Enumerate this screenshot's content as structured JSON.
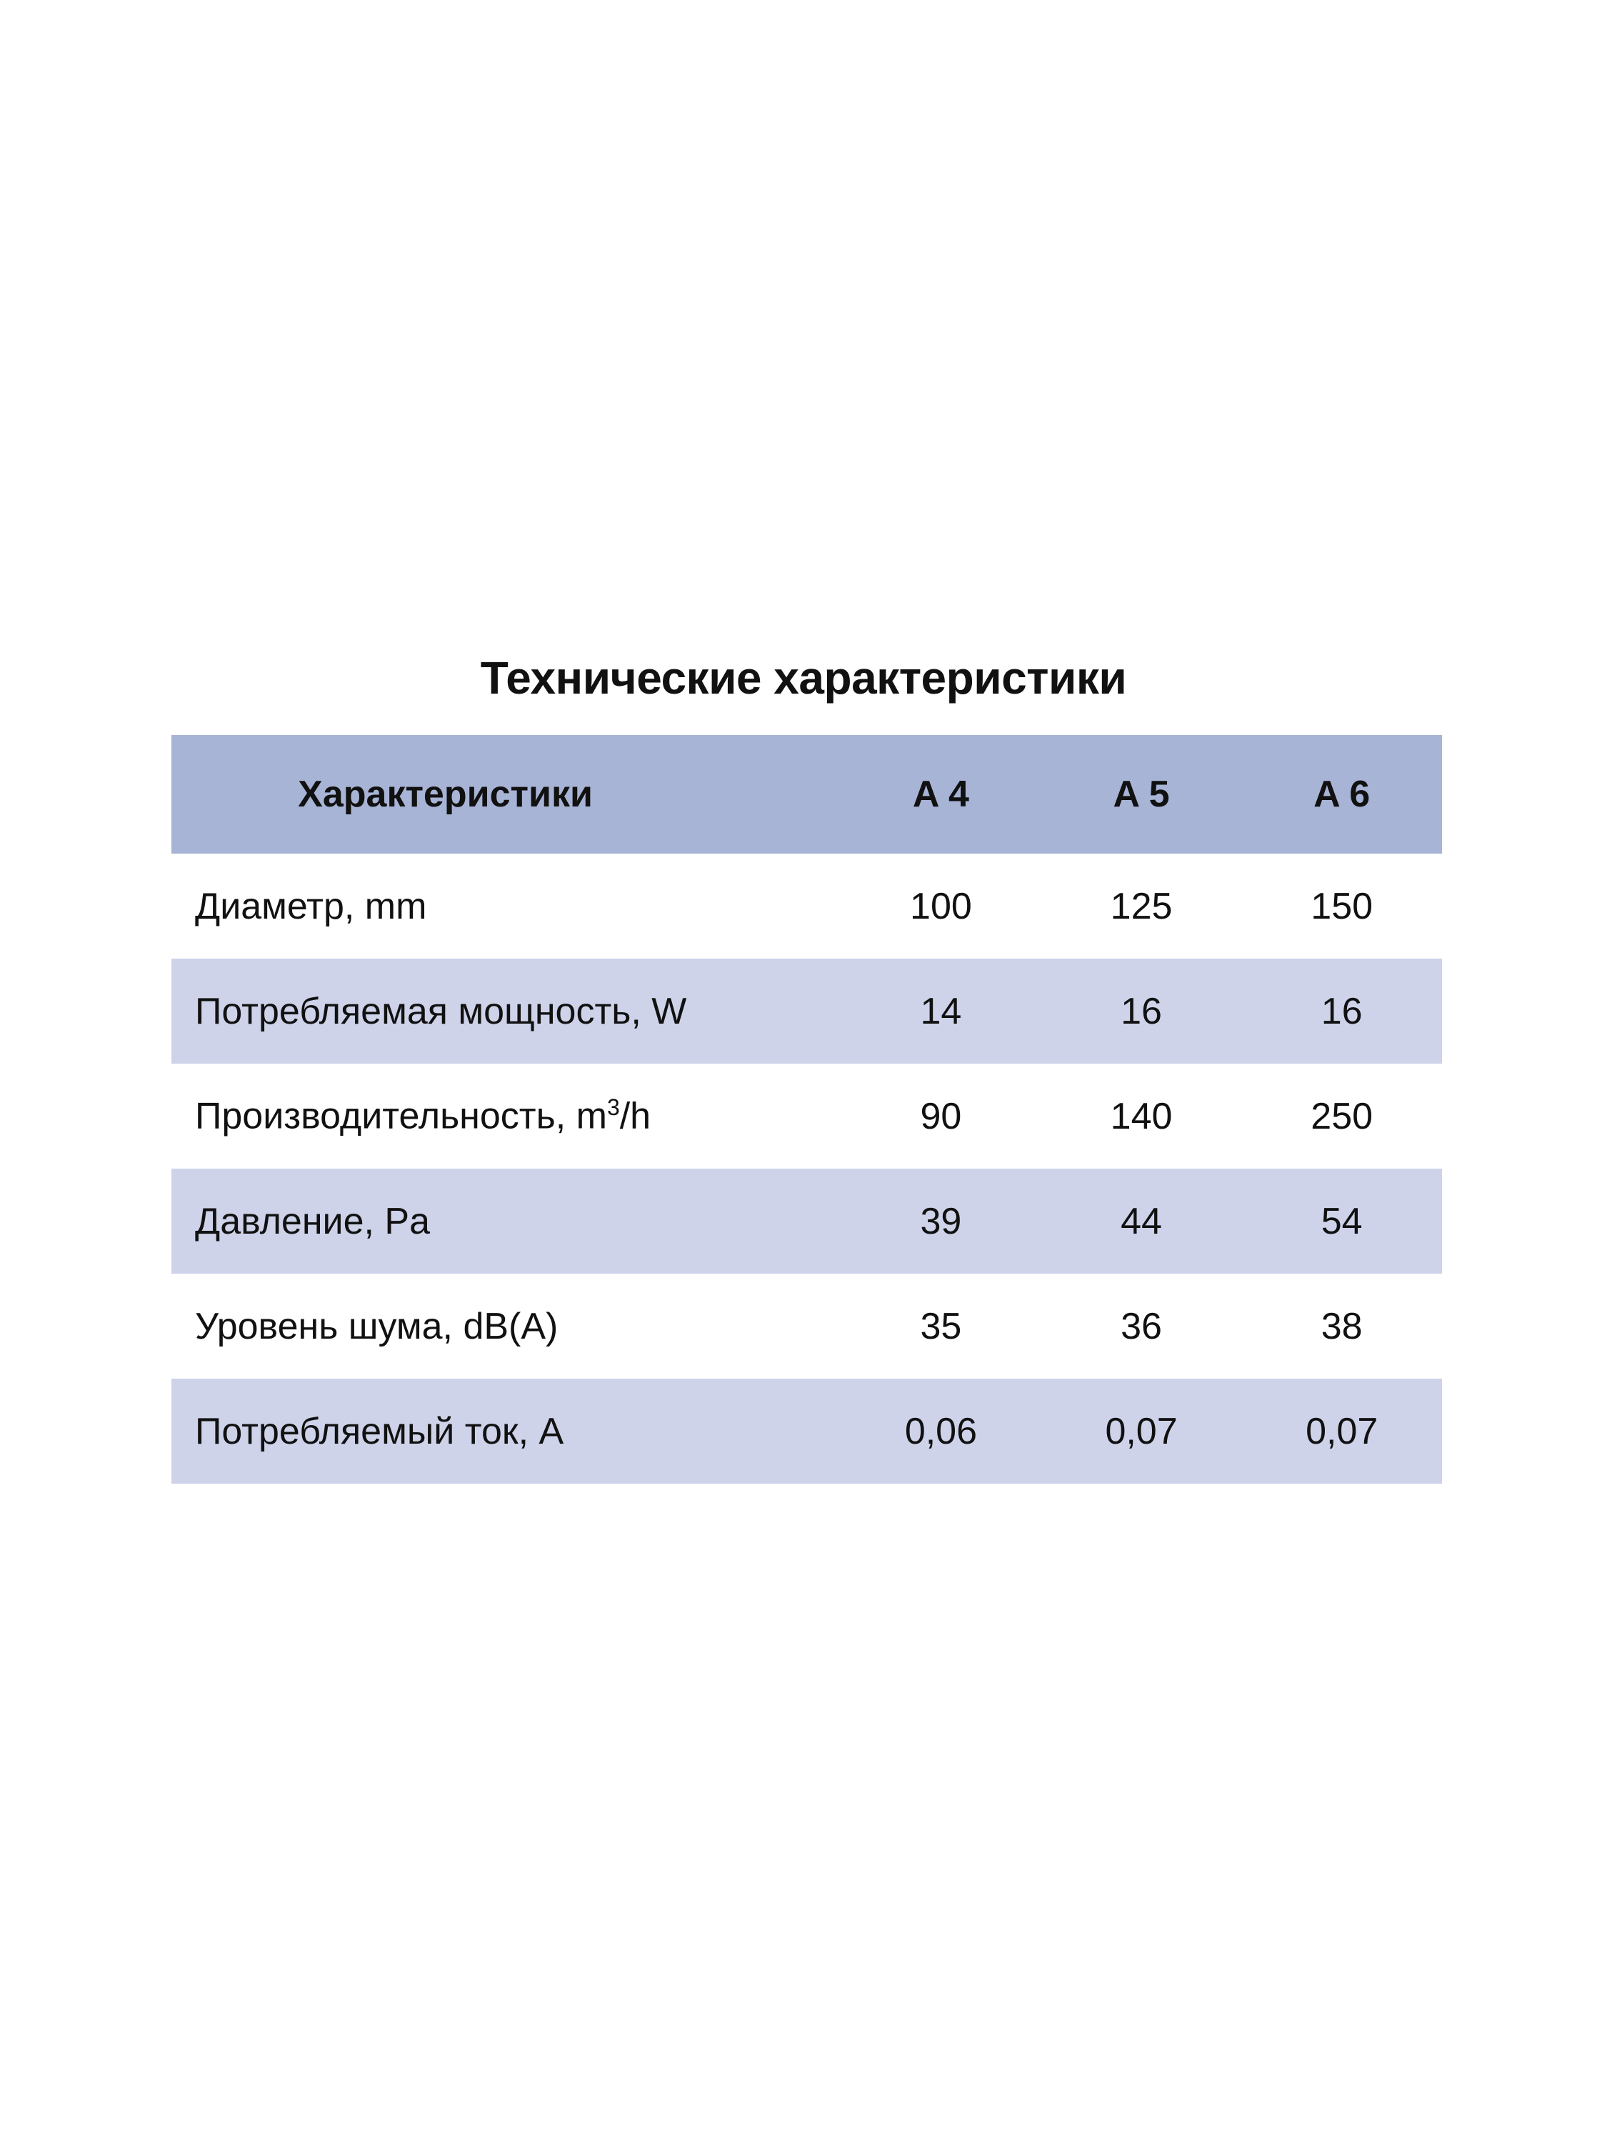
{
  "title": "Технические характеристики",
  "table": {
    "headers": [
      "Характеристики",
      "A 4",
      "A 5",
      "A 6"
    ],
    "rows": [
      {
        "label": "Диаметр, mm",
        "values": [
          "100",
          "125",
          "150"
        ]
      },
      {
        "label": "Потребляемая мощность, W",
        "values": [
          "14",
          "16",
          "16"
        ]
      },
      {
        "label": "Производительность, m",
        "label_sup": "3",
        "label_suffix": "/h",
        "values": [
          "90",
          "140",
          "250"
        ]
      },
      {
        "label": "Давление, Pa",
        "values": [
          "39",
          "44",
          "54"
        ]
      },
      {
        "label": "Уровень шума, dB(A)",
        "values": [
          "35",
          "36",
          "38"
        ]
      },
      {
        "label": "Потребляемый ток, A",
        "values": [
          "0,06",
          "0,07",
          "0,07"
        ]
      }
    ]
  },
  "colors": {
    "header_bg": "#a8b4d6",
    "stripe_bg": "#ced3ea"
  }
}
